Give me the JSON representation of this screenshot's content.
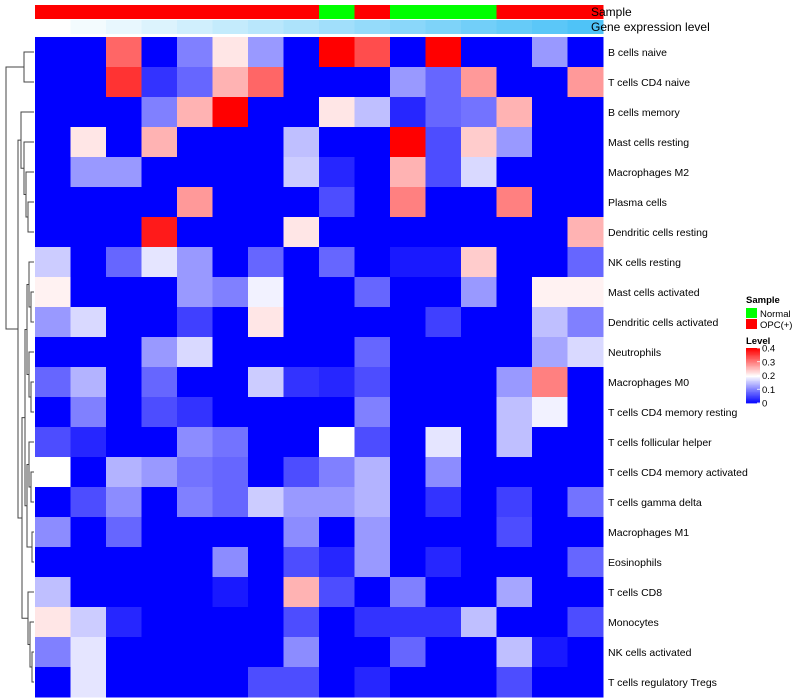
{
  "chart_data": {
    "type": "heatmap",
    "title": "",
    "annotation_tracks": [
      {
        "name": "Sample",
        "values": [
          "OPC(+)",
          "OPC(+)",
          "OPC(+)",
          "OPC(+)",
          "OPC(+)",
          "OPC(+)",
          "OPC(+)",
          "OPC(+)",
          "Normal",
          "OPC(+)",
          "Normal",
          "Normal",
          "Normal",
          "OPC(+)",
          "OPC(+)",
          "OPC(+)"
        ]
      },
      {
        "name": "Gene expression level",
        "values": [
          0.0,
          0.067,
          0.133,
          0.2,
          0.267,
          0.333,
          0.4,
          0.467,
          0.533,
          0.6,
          0.667,
          0.733,
          0.8,
          0.867,
          0.933,
          1.0
        ]
      }
    ],
    "rows": [
      "B cells naive",
      "T cells CD4 naive",
      "B cells memory",
      "Mast cells resting",
      "Macrophages M2",
      "Plasma cells",
      "Dendritic cells resting",
      "NK cells resting",
      "Mast cells activated",
      "Dendritic cells activated",
      "Neutrophils",
      "Macrophages M0",
      "T cells CD4 memory resting",
      "T cells follicular helper",
      "T cells CD4 memory activated",
      "T cells gamma delta",
      "Macrophages M1",
      "Eosinophils",
      "T cells CD8",
      "Monocytes",
      "NK cells activated",
      "T cells regulatory  Tregs"
    ],
    "values": [
      [
        0,
        0,
        0.32,
        0,
        0.1,
        0.22,
        0.12,
        0,
        0.4,
        0.34,
        0,
        0.4,
        0,
        0,
        0.12,
        0
      ],
      [
        0,
        0,
        0.36,
        0.04,
        0.08,
        0.26,
        0.32,
        0,
        0,
        0,
        0.12,
        0.08,
        0.28,
        0,
        0,
        0.28
      ],
      [
        0,
        0,
        0,
        0.1,
        0.26,
        0.4,
        0,
        0,
        0.22,
        0.15,
        0.03,
        0.08,
        0.09,
        0.26,
        0,
        0
      ],
      [
        0,
        0.22,
        0,
        0.26,
        0,
        0,
        0,
        0.15,
        0,
        0,
        0.4,
        0.06,
        0.24,
        0.12,
        0,
        0
      ],
      [
        0,
        0.12,
        0.12,
        0,
        0,
        0,
        0,
        0.16,
        0.03,
        0,
        0.26,
        0.06,
        0.17,
        0,
        0,
        0
      ],
      [
        0,
        0,
        0,
        0,
        0.28,
        0,
        0,
        0,
        0.06,
        0,
        0.3,
        0,
        0,
        0.3,
        0,
        0
      ],
      [
        0,
        0,
        0,
        0.38,
        0,
        0,
        0,
        0.22,
        0,
        0,
        0,
        0,
        0,
        0,
        0,
        0.26
      ],
      [
        0.16,
        0,
        0.08,
        0.18,
        0.12,
        0,
        0.08,
        0,
        0.08,
        0,
        0.02,
        0.02,
        0.24,
        0,
        0,
        0.08
      ],
      [
        0.21,
        0,
        0,
        0,
        0.12,
        0.1,
        0.19,
        0,
        0,
        0.08,
        0,
        0,
        0.12,
        0,
        0.21,
        0.21
      ],
      [
        0.12,
        0.17,
        0,
        0,
        0.05,
        0,
        0.22,
        0,
        0,
        0,
        0,
        0.05,
        0,
        0,
        0.15,
        0.1
      ],
      [
        0,
        0,
        0,
        0.12,
        0.17,
        0,
        0,
        0,
        0,
        0.08,
        0,
        0,
        0,
        0,
        0.13,
        0.17
      ],
      [
        0.08,
        0.14,
        0,
        0.08,
        0,
        0,
        0.16,
        0.04,
        0.03,
        0.06,
        0,
        0,
        0,
        0.12,
        0.3,
        0
      ],
      [
        0,
        0.1,
        0,
        0.06,
        0.04,
        0,
        0,
        0,
        0,
        0.1,
        0,
        0,
        0,
        0.15,
        0.19,
        0
      ],
      [
        0.06,
        0.03,
        0,
        0,
        0.11,
        0.09,
        0,
        0,
        0.2,
        0.06,
        0,
        0.18,
        0,
        0.15,
        0,
        0
      ],
      [
        0.2,
        0,
        0.14,
        0.12,
        0.09,
        0.08,
        0,
        0.06,
        0.1,
        0.14,
        0,
        0.11,
        0,
        0,
        0,
        0
      ],
      [
        0,
        0.06,
        0.11,
        0,
        0.1,
        0.08,
        0.16,
        0.12,
        0.12,
        0.14,
        0,
        0.04,
        0,
        0.05,
        0,
        0.09
      ],
      [
        0.11,
        0,
        0.08,
        0,
        0,
        0,
        0,
        0.11,
        0,
        0.12,
        0,
        0,
        0,
        0.06,
        0,
        0
      ],
      [
        0,
        0,
        0,
        0,
        0,
        0.11,
        0,
        0.06,
        0.03,
        0.12,
        0,
        0.03,
        0,
        0,
        0,
        0.08
      ],
      [
        0.15,
        0,
        0,
        0,
        0,
        0.02,
        0,
        0.26,
        0.06,
        0,
        0.1,
        0,
        0,
        0.13,
        0,
        0
      ],
      [
        0.22,
        0.16,
        0.03,
        0,
        0,
        0,
        0,
        0.06,
        0,
        0.04,
        0.04,
        0.04,
        0.15,
        0,
        0,
        0.06
      ],
      [
        0.1,
        0.18,
        0,
        0,
        0,
        0,
        0,
        0.11,
        0,
        0,
        0.08,
        0,
        0,
        0.15,
        0.02,
        0
      ],
      [
        0,
        0.18,
        0,
        0,
        0,
        0,
        0.06,
        0.06,
        0,
        0.03,
        0,
        0,
        0,
        0.06,
        0,
        0
      ]
    ],
    "color_scale": {
      "min": 0,
      "max": 0.4,
      "low": "#0000ff",
      "mid": "#ffffff",
      "high": "#ff0000",
      "ticks": [
        "0",
        "0.1",
        "0.2",
        "0.3",
        "0.4"
      ],
      "tick_values": [
        0,
        0.1,
        0.2,
        0.3,
        0.4
      ]
    },
    "legend": {
      "sample_title": "Sample",
      "sample_items": [
        {
          "label": "Normal",
          "color": "#00ff00"
        },
        {
          "label": "OPC(+)",
          "color": "#ff0000"
        }
      ],
      "level_title": "Level"
    },
    "track_colors": {
      "gene_low": "#ffffff",
      "gene_high": "#4fc3f7"
    }
  }
}
